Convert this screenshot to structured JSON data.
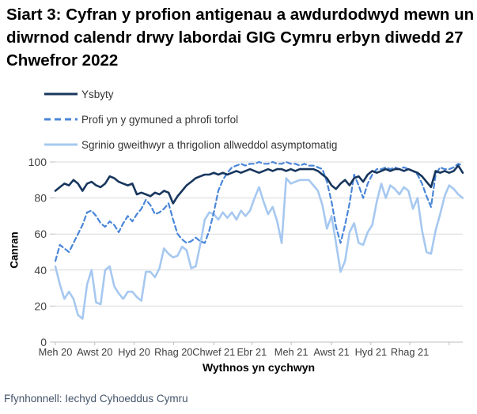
{
  "title": "Siart 3: Cyfran y profion antigenau a awdurdodwyd mewn un diwrnod calendr drwy labordai GIG Cymru erbyn diwedd 27 Chwefror 2022",
  "source": "Ffynhonnell: Iechyd Cyhoeddus Cymru",
  "colors": {
    "hospital_line": "#17365d",
    "community_line": "#4a86d8",
    "screening_line": "#a6c8f0",
    "gridline": "#d9d9d9",
    "axis_line": "#bfbfbf",
    "tick_text": "#3f3f3f",
    "legend_text": "#333333",
    "source_text": "#44546a"
  },
  "legend": [
    {
      "label": "Ysbyty",
      "color": "#17365d",
      "style": "solid"
    },
    {
      "label": "Profi yn y gymuned a phrofi torfol",
      "color": "#4a86d8",
      "style": "dashed"
    },
    {
      "label": "Sgrinio gweithwyr a thrigolion allweddol asymptomatig",
      "color": "#a6c8f0",
      "style": "solid"
    }
  ],
  "chart_data": {
    "type": "line",
    "title": "Siart 3: Cyfran y profion antigenau a awdurdodwyd mewn un diwrnod calendr drwy labordai GIG Cymru erbyn diwedd 27 Chwefror 2022",
    "xlabel": "Wythnos yn cychwyn",
    "ylabel": "Canran",
    "ylim": [
      0,
      100
    ],
    "yticks": [
      0,
      20,
      40,
      60,
      80,
      100
    ],
    "grid": "horizontal",
    "legend_position": "top-left",
    "x_unit": "weekly points, week starting 1 Meh 2020 (index 0) to 21 Chwef 2022 (index 90)",
    "x_tick_labels": [
      "Meh 20",
      "Awst 20",
      "Hyd 20",
      "Rhag 20",
      "Chwef 21",
      "Ebr 21",
      "Meh 21",
      "Awst 21",
      "Hyd 21",
      "Rhag 21"
    ],
    "x_tick_positions": [
      0,
      8.7,
      17.4,
      26.1,
      35,
      43.4,
      52.1,
      61,
      69.7,
      78.3
    ],
    "extra_unlabeled_tick_positions": [
      87
    ],
    "x_range": [
      0,
      90
    ],
    "series": [
      {
        "name": "Ysbyty",
        "color": "#17365d",
        "dash": "solid",
        "values": [
          84,
          86,
          88,
          87,
          90,
          88,
          84,
          88,
          89,
          87,
          86,
          88,
          92,
          91,
          89,
          88,
          87,
          88,
          82,
          83,
          82,
          81,
          83,
          82,
          84,
          83,
          77,
          81,
          84,
          87,
          89,
          91,
          92,
          93,
          93,
          94,
          93,
          94,
          93,
          94,
          95,
          94,
          95,
          96,
          95,
          94,
          95,
          96,
          95,
          96,
          96,
          95,
          96,
          95,
          96,
          96,
          96,
          96,
          95,
          93,
          91,
          87,
          85,
          88,
          90,
          87,
          91,
          92,
          89,
          93,
          95,
          94,
          95,
          96,
          95,
          96,
          96,
          95,
          96,
          95,
          94,
          92,
          89,
          86,
          95,
          94,
          95,
          94,
          95,
          98,
          94
        ]
      },
      {
        "name": "Profi yn y gymuned a phrofi torfol",
        "color": "#4a86d8",
        "dash": "dashed",
        "values": [
          45,
          54,
          52,
          50,
          55,
          60,
          65,
          72,
          73,
          70,
          66,
          64,
          67,
          65,
          61,
          66,
          70,
          67,
          71,
          74,
          79,
          76,
          71,
          72,
          74,
          77,
          68,
          60,
          57,
          55,
          56,
          58,
          56,
          55,
          62,
          72,
          84,
          90,
          94,
          97,
          98,
          99,
          98,
          99,
          99,
          100,
          99,
          99,
          100,
          99,
          99,
          100,
          99,
          99,
          98,
          99,
          98,
          98,
          97,
          96,
          89,
          78,
          64,
          55,
          65,
          77,
          93,
          87,
          80,
          88,
          93,
          96,
          96,
          97,
          96,
          97,
          96,
          97,
          96,
          95,
          93,
          88,
          81,
          75,
          93,
          97,
          96,
          96,
          97,
          99,
          98
        ]
      },
      {
        "name": "Sgrinio gweithwyr a thrigolion allweddol asymptomatig",
        "color": "#a6c8f0",
        "dash": "solid",
        "values": [
          42,
          32,
          24,
          28,
          24,
          15,
          13,
          32,
          40,
          22,
          21,
          40,
          42,
          31,
          27,
          24,
          28,
          28,
          25,
          23,
          39,
          39,
          36,
          41,
          52,
          49,
          47,
          48,
          53,
          51,
          41,
          42,
          54,
          68,
          72,
          71,
          68,
          72,
          69,
          72,
          68,
          73,
          70,
          73,
          80,
          86,
          78,
          71,
          75,
          67,
          55,
          91,
          88,
          89,
          90,
          90,
          90,
          87,
          84,
          76,
          63,
          70,
          55,
          39,
          45,
          61,
          66,
          55,
          54,
          61,
          65,
          78,
          88,
          80,
          87,
          85,
          82,
          86,
          84,
          74,
          80,
          62,
          50,
          49,
          62,
          71,
          81,
          87,
          85,
          82,
          80
        ]
      }
    ]
  }
}
